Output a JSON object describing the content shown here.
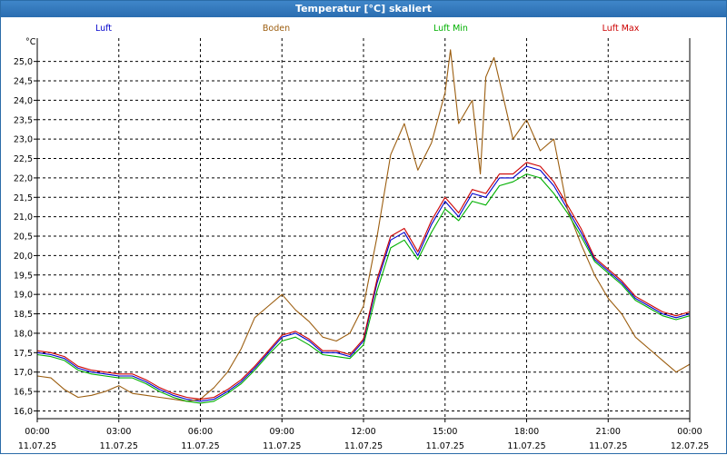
{
  "window": {
    "title": "Temperatur [°C] skaliert"
  },
  "chart_data": {
    "type": "line",
    "title": "Temperatur [°C] skaliert",
    "ylabel": "°C",
    "ylim": [
      15.8,
      25.6
    ],
    "yticks": [
      "16,0",
      "16,5",
      "17,0",
      "17,5",
      "18,0",
      "18,5",
      "19,0",
      "19,5",
      "20,0",
      "20,5",
      "21,0",
      "21,5",
      "22,0",
      "22,5",
      "23,0",
      "23,5",
      "24,0",
      "24,5",
      "25,0"
    ],
    "xlim": [
      0,
      24
    ],
    "xticks": [
      {
        "time": "00:00",
        "date": "11.07.25"
      },
      {
        "time": "03:00",
        "date": "11.07.25"
      },
      {
        "time": "06:00",
        "date": "11.07.25"
      },
      {
        "time": "09:00",
        "date": "11.07.25"
      },
      {
        "time": "12:00",
        "date": "11.07.25"
      },
      {
        "time": "15:00",
        "date": "11.07.25"
      },
      {
        "time": "18:00",
        "date": "11.07.25"
      },
      {
        "time": "21:00",
        "date": "11.07.25"
      },
      {
        "time": "00:00",
        "date": "12.07.25"
      }
    ],
    "grid": true,
    "series": [
      {
        "name": "Luft",
        "color": "#0000cc",
        "x": [
          0,
          0.5,
          1,
          1.5,
          2,
          2.5,
          3,
          3.5,
          4,
          4.5,
          5,
          5.5,
          6,
          6.5,
          7,
          7.5,
          8,
          8.5,
          9,
          9.5,
          10,
          10.5,
          11,
          11.5,
          12,
          12.5,
          13,
          13.5,
          14,
          14.5,
          15,
          15.5,
          16,
          16.5,
          17,
          17.5,
          18,
          18.5,
          19,
          19.5,
          20,
          20.5,
          21,
          21.5,
          22,
          22.5,
          23,
          23.5,
          24
        ],
        "values": [
          17.5,
          17.45,
          17.35,
          17.1,
          17.0,
          16.95,
          16.9,
          16.9,
          16.75,
          16.55,
          16.4,
          16.3,
          16.25,
          16.3,
          16.5,
          16.75,
          17.1,
          17.5,
          17.9,
          18.0,
          17.8,
          17.5,
          17.5,
          17.4,
          17.8,
          19.3,
          20.4,
          20.6,
          20.0,
          20.8,
          21.4,
          21.0,
          21.6,
          21.5,
          22.0,
          22.0,
          22.3,
          22.2,
          21.8,
          21.2,
          20.6,
          19.9,
          19.6,
          19.3,
          18.9,
          18.7,
          18.5,
          18.4,
          18.5
        ]
      },
      {
        "name": "Boden",
        "color": "#9c5e10",
        "x": [
          0,
          0.5,
          1,
          1.5,
          2,
          2.5,
          3,
          3.5,
          4,
          4.5,
          5,
          5.5,
          6,
          6.5,
          7,
          7.5,
          8,
          8.5,
          9,
          9.5,
          10,
          10.5,
          11,
          11.5,
          12,
          12.5,
          13,
          13.5,
          14,
          14.5,
          15,
          15.2,
          15.5,
          16,
          16.3,
          16.5,
          16.8,
          17,
          17.5,
          18,
          18.5,
          19,
          19.5,
          20,
          20.5,
          21,
          21.5,
          22,
          22.5,
          23,
          23.5,
          24
        ],
        "values": [
          16.9,
          16.85,
          16.55,
          16.35,
          16.4,
          16.5,
          16.65,
          16.45,
          16.4,
          16.35,
          16.3,
          16.25,
          16.3,
          16.6,
          17.0,
          17.6,
          18.4,
          18.7,
          19.0,
          18.6,
          18.3,
          17.9,
          17.8,
          18.0,
          18.7,
          20.5,
          22.6,
          23.4,
          22.2,
          22.9,
          24.2,
          25.3,
          23.4,
          24.0,
          22.1,
          24.6,
          25.1,
          24.5,
          23.0,
          23.5,
          22.7,
          23.0,
          21.2,
          20.3,
          19.5,
          18.9,
          18.5,
          17.9,
          17.6,
          17.3,
          17.0,
          17.2
        ]
      },
      {
        "name": "Luft Min",
        "color": "#00b000",
        "x": [
          0,
          0.5,
          1,
          1.5,
          2,
          2.5,
          3,
          3.5,
          4,
          4.5,
          5,
          5.5,
          6,
          6.5,
          7,
          7.5,
          8,
          8.5,
          9,
          9.5,
          10,
          10.5,
          11,
          11.5,
          12,
          12.5,
          13,
          13.5,
          14,
          14.5,
          15,
          15.5,
          16,
          16.5,
          17,
          17.5,
          18,
          18.5,
          19,
          19.5,
          20,
          20.5,
          21,
          21.5,
          22,
          22.5,
          23,
          23.5,
          24
        ],
        "values": [
          17.45,
          17.4,
          17.3,
          17.05,
          16.95,
          16.9,
          16.85,
          16.85,
          16.7,
          16.5,
          16.35,
          16.25,
          16.2,
          16.25,
          16.45,
          16.7,
          17.05,
          17.45,
          17.8,
          17.9,
          17.7,
          17.45,
          17.4,
          17.35,
          17.7,
          19.1,
          20.2,
          20.4,
          19.9,
          20.6,
          21.2,
          20.9,
          21.4,
          21.3,
          21.8,
          21.9,
          22.1,
          22.0,
          21.6,
          21.1,
          20.5,
          19.85,
          19.55,
          19.25,
          18.85,
          18.65,
          18.45,
          18.35,
          18.45
        ]
      },
      {
        "name": "Luft Max",
        "color": "#cc0000",
        "x": [
          0,
          0.5,
          1,
          1.5,
          2,
          2.5,
          3,
          3.5,
          4,
          4.5,
          5,
          5.5,
          6,
          6.5,
          7,
          7.5,
          8,
          8.5,
          9,
          9.5,
          10,
          10.5,
          11,
          11.5,
          12,
          12.5,
          13,
          13.5,
          14,
          14.5,
          15,
          15.5,
          16,
          16.5,
          17,
          17.5,
          18,
          18.5,
          19,
          19.5,
          20,
          20.5,
          21,
          21.5,
          22,
          22.5,
          23,
          23.5,
          24
        ],
        "values": [
          17.55,
          17.5,
          17.4,
          17.15,
          17.05,
          17.0,
          16.95,
          16.95,
          16.8,
          16.6,
          16.45,
          16.35,
          16.3,
          16.35,
          16.55,
          16.8,
          17.15,
          17.55,
          17.95,
          18.05,
          17.85,
          17.55,
          17.55,
          17.45,
          17.85,
          19.4,
          20.5,
          20.7,
          20.1,
          20.9,
          21.5,
          21.1,
          21.7,
          21.6,
          22.1,
          22.1,
          22.4,
          22.3,
          21.9,
          21.3,
          20.7,
          19.95,
          19.65,
          19.35,
          18.95,
          18.75,
          18.55,
          18.45,
          18.55
        ]
      }
    ]
  }
}
